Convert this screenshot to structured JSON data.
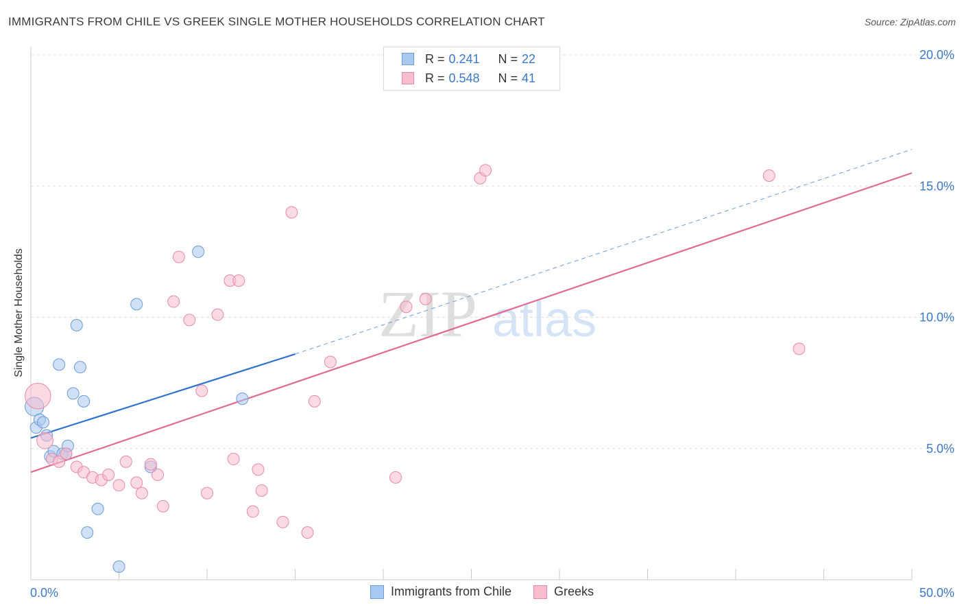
{
  "header": {
    "title": "IMMIGRANTS FROM CHILE VS GREEK SINGLE MOTHER HOUSEHOLDS CORRELATION CHART",
    "source": "Source: ZipAtlas.com"
  },
  "legend": {
    "rows": [
      {
        "r_label": "R = ",
        "r_value": "0.241",
        "n_label": "N = ",
        "n_value": "22",
        "color": "#a9c8f0",
        "border": "#6b9bd8"
      },
      {
        "r_label": "R = ",
        "r_value": "0.548",
        "n_label": "N = ",
        "n_value": "41",
        "color": "#f7bccd",
        "border": "#e88aa6"
      }
    ]
  },
  "watermark": {
    "zip": "ZIP",
    "atlas": "atlas"
  },
  "colors": {
    "blue_fill": "#a9c8f0",
    "blue_stroke": "#6b9bd8",
    "blue_line": "#2f72cc",
    "pink_fill": "#f7bccd",
    "pink_stroke": "#e88aa6",
    "pink_line": "#e06a93",
    "tick_text": "#3b78c9",
    "grid": "#dddddd"
  },
  "chart_data": {
    "type": "scatter",
    "title": "IMMIGRANTS FROM CHILE VS GREEK SINGLE MOTHER HOUSEHOLDS CORRELATION CHART",
    "xlabel": "",
    "ylabel": "Single Mother Households",
    "xlim": [
      0,
      50
    ],
    "ylim": [
      0,
      20
    ],
    "x_tick_labels": [
      {
        "value": 0,
        "label": "0.0%"
      },
      {
        "value": 50,
        "label": "50.0%"
      }
    ],
    "y_ticks": [
      {
        "value": 5,
        "label": "5.0%"
      },
      {
        "value": 10,
        "label": "10.0%"
      },
      {
        "value": 15,
        "label": "15.0%"
      },
      {
        "value": 20,
        "label": "20.0%"
      }
    ],
    "grid": true,
    "legend_position": "top-center",
    "series": [
      {
        "name": "Immigrants from Chile",
        "r": 0.241,
        "n": 22,
        "points": [
          [
            0.2,
            6.6,
            1.6
          ],
          [
            0.3,
            5.8,
            1
          ],
          [
            0.5,
            6.1,
            1
          ],
          [
            0.7,
            6.0,
            1
          ],
          [
            0.9,
            5.5,
            1
          ],
          [
            1.1,
            4.7,
            1
          ],
          [
            1.3,
            4.9,
            1
          ],
          [
            1.6,
            8.2,
            1
          ],
          [
            1.8,
            4.8,
            1
          ],
          [
            2.0,
            4.8,
            1
          ],
          [
            2.1,
            5.1,
            1
          ],
          [
            2.4,
            7.1,
            1
          ],
          [
            2.6,
            9.7,
            1
          ],
          [
            2.8,
            8.1,
            1
          ],
          [
            3.0,
            6.8,
            1
          ],
          [
            3.2,
            1.8,
            1
          ],
          [
            3.8,
            2.7,
            1
          ],
          [
            5.0,
            0.5,
            1
          ],
          [
            6.0,
            10.5,
            1
          ],
          [
            6.8,
            4.3,
            1
          ],
          [
            9.5,
            12.5,
            1
          ],
          [
            12.0,
            6.9,
            1
          ]
        ],
        "trend": {
          "x": [
            0,
            15
          ],
          "y": [
            5.4,
            8.6
          ]
        },
        "trend_extension": {
          "x": [
            15,
            50
          ],
          "y": [
            8.6,
            16.4
          ]
        }
      },
      {
        "name": "Greeks",
        "r": 0.548,
        "n": 41,
        "points": [
          [
            0.4,
            7.0,
            2.2
          ],
          [
            0.8,
            5.3,
            1.4
          ],
          [
            1.2,
            4.6,
            1
          ],
          [
            1.6,
            4.5,
            1
          ],
          [
            2.0,
            4.8,
            1
          ],
          [
            2.6,
            4.3,
            1
          ],
          [
            3.0,
            4.1,
            1
          ],
          [
            3.5,
            3.9,
            1
          ],
          [
            4.0,
            3.8,
            1
          ],
          [
            4.4,
            4.0,
            1
          ],
          [
            5.0,
            3.6,
            1
          ],
          [
            5.4,
            4.5,
            1
          ],
          [
            6.0,
            3.7,
            1
          ],
          [
            6.3,
            3.3,
            1
          ],
          [
            6.8,
            4.4,
            1
          ],
          [
            7.2,
            4.0,
            1
          ],
          [
            7.5,
            2.8,
            1
          ],
          [
            8.1,
            10.6,
            1
          ],
          [
            8.4,
            12.3,
            1
          ],
          [
            9.0,
            9.9,
            1
          ],
          [
            9.7,
            7.2,
            1
          ],
          [
            10.0,
            3.3,
            1
          ],
          [
            10.6,
            10.1,
            1
          ],
          [
            11.3,
            11.4,
            1
          ],
          [
            11.5,
            4.6,
            1
          ],
          [
            11.8,
            11.4,
            1
          ],
          [
            12.6,
            2.6,
            1
          ],
          [
            12.9,
            4.2,
            1
          ],
          [
            13.1,
            3.4,
            1
          ],
          [
            14.3,
            2.2,
            1
          ],
          [
            14.8,
            14.0,
            1
          ],
          [
            15.7,
            1.8,
            1
          ],
          [
            16.1,
            6.8,
            1
          ],
          [
            17.0,
            8.3,
            1
          ],
          [
            20.7,
            3.9,
            1
          ],
          [
            21.3,
            10.4,
            1
          ],
          [
            22.4,
            10.7,
            1
          ],
          [
            25.5,
            15.3,
            1
          ],
          [
            25.8,
            15.6,
            1
          ],
          [
            41.9,
            15.4,
            1
          ],
          [
            43.6,
            8.8,
            1
          ]
        ],
        "trend": {
          "x": [
            0,
            50
          ],
          "y": [
            4.1,
            15.5
          ]
        }
      }
    ]
  }
}
